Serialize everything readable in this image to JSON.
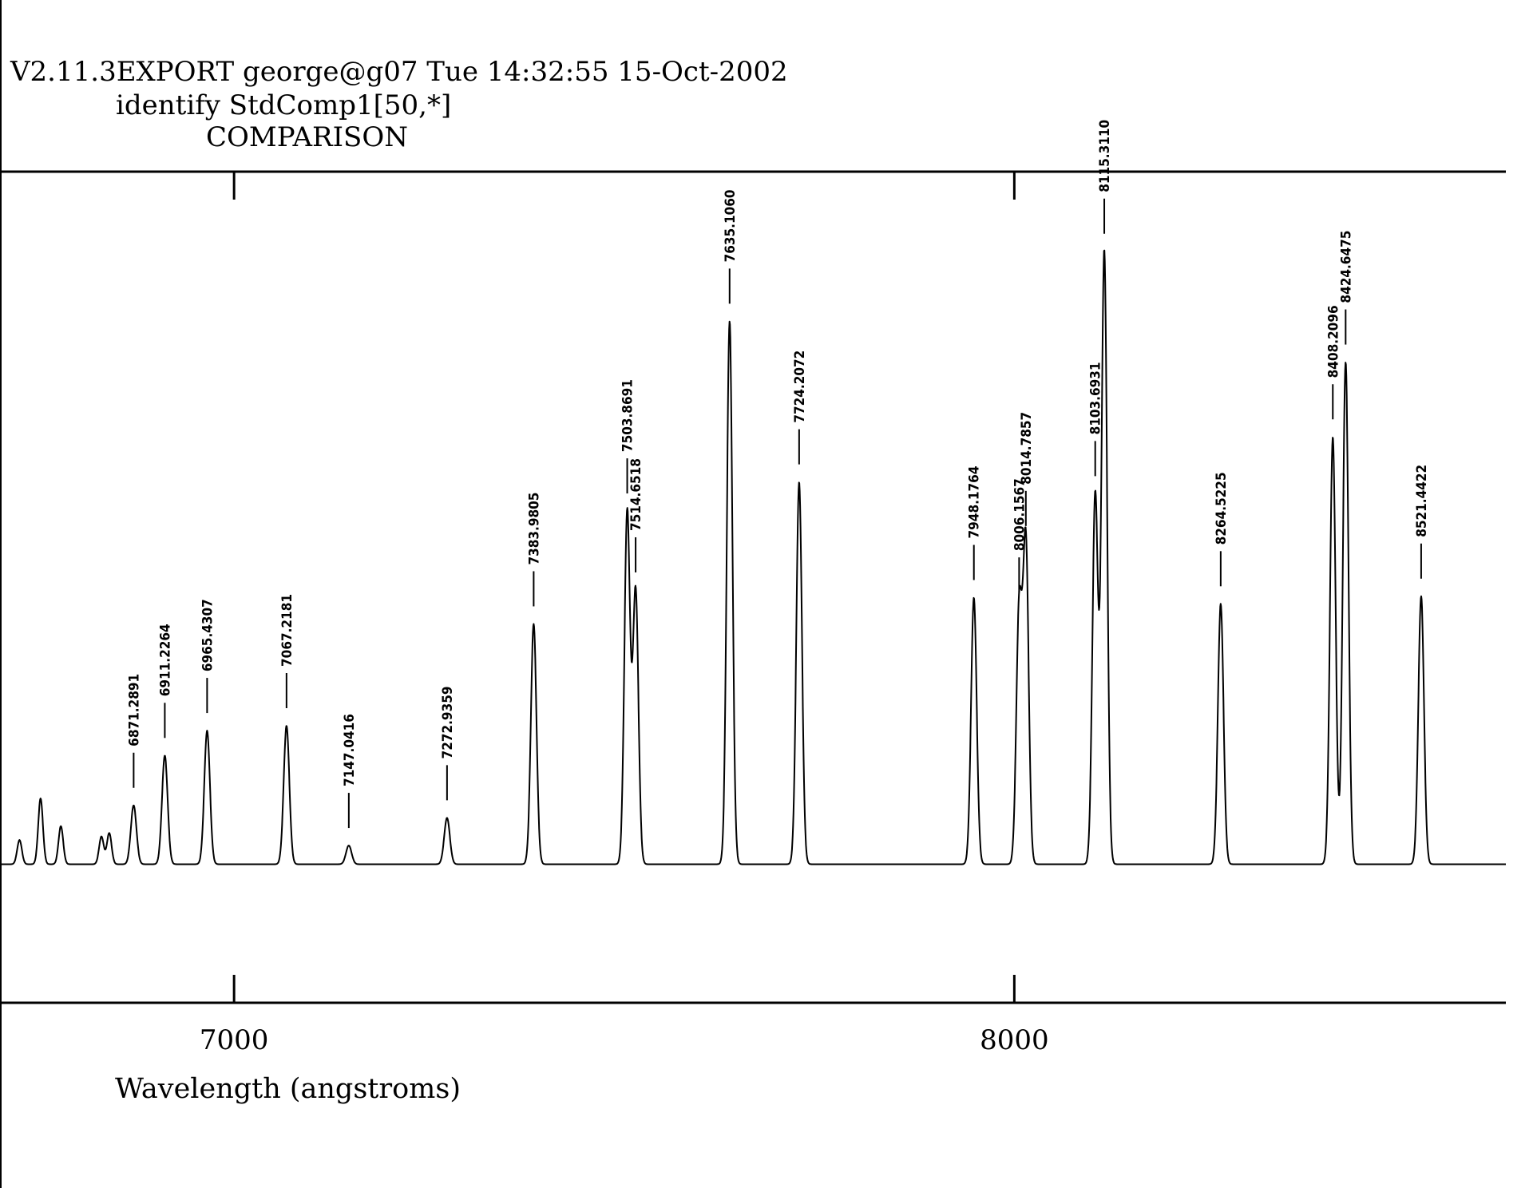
{
  "header": {
    "line1": "V2.11.3EXPORT george@g07 Tue 14:32:55 15-Oct-2002",
    "line2": "identify StdComp1[50,*]",
    "line3": "COMPARISON"
  },
  "chart_data": {
    "type": "line",
    "title": "COMPARISON",
    "xlabel": "Wavelength (angstroms)",
    "ylabel": "",
    "xlim": [
      6700,
      8630
    ],
    "ylim": [
      -20,
      100
    ],
    "x_ticks": [
      7000,
      8000
    ],
    "x_tick_labels": [
      "7000",
      "8000"
    ],
    "grid": false,
    "identified_lines": [
      {
        "label": "6871.2891",
        "x": 6871.2891,
        "peak": 8.5
      },
      {
        "label": "6911.2264",
        "x": 6911.2264,
        "peak": 15.7
      },
      {
        "label": "6965.4307",
        "x": 6965.4307,
        "peak": 19.3
      },
      {
        "label": "7067.2181",
        "x": 7067.2181,
        "peak": 20.0
      },
      {
        "label": "7147.0416",
        "x": 7147.0416,
        "peak": 2.7
      },
      {
        "label": "7272.9359",
        "x": 7272.9359,
        "peak": 6.7
      },
      {
        "label": "7383.9805",
        "x": 7383.9805,
        "peak": 34.7
      },
      {
        "label": "7503.8691",
        "x": 7503.8691,
        "peak": 51.0
      },
      {
        "label": "7514.6518",
        "x": 7514.6518,
        "peak": 39.6
      },
      {
        "label": "7635.1060",
        "x": 7635.106,
        "peak": 78.4
      },
      {
        "label": "7724.2072",
        "x": 7724.2072,
        "peak": 55.2
      },
      {
        "label": "7948.1764",
        "x": 7948.1764,
        "peak": 38.5
      },
      {
        "label": "8006.1567",
        "x": 8006.1567,
        "peak": 36.7
      },
      {
        "label": "8014.7857",
        "x": 8014.7857,
        "peak": 46.3
      },
      {
        "label": "8103.6931",
        "x": 8103.6931,
        "peak": 53.5
      },
      {
        "label": "8115.3110",
        "x": 8115.311,
        "peak": 88.5
      },
      {
        "label": "8264.5225",
        "x": 8264.5225,
        "peak": 37.6
      },
      {
        "label": "8408.2096",
        "x": 8408.2096,
        "peak": 61.7
      },
      {
        "label": "8424.6475",
        "x": 8424.6475,
        "peak": 72.5
      },
      {
        "label": "8521.4422",
        "x": 8521.4422,
        "peak": 38.7
      }
    ],
    "unlabeled_features": [
      {
        "x": 6725,
        "peak": 3.5
      },
      {
        "x": 6752,
        "peak": 9.5
      },
      {
        "x": 6778,
        "peak": 5.5
      },
      {
        "x": 6830,
        "peak": 4.0
      },
      {
        "x": 6840,
        "peak": 4.5
      }
    ]
  }
}
